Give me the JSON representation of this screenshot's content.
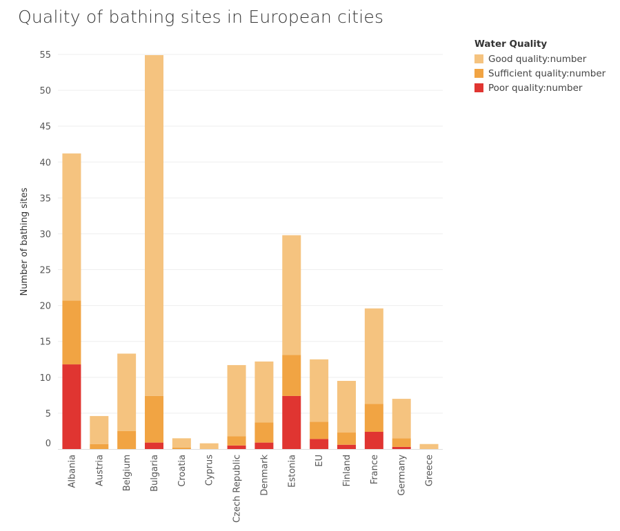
{
  "chart_data": {
    "type": "bar",
    "stacked": true,
    "title": "Quality of bathing sites in European cities",
    "ylabel": "Number of bathing sites",
    "xlabel": "",
    "ylim": [
      0,
      55
    ],
    "yticks": [
      0,
      5,
      10,
      15,
      20,
      25,
      30,
      35,
      40,
      45,
      50,
      55
    ],
    "grid": "horizontal",
    "legend_title": "Water Quality",
    "legend_position": "top-right",
    "categories": [
      "Albania",
      "Austria",
      "Belgium",
      "Bulgaria",
      "Croatia",
      "Cyprus",
      "Czech Republic",
      "Denmark",
      "Estonia",
      "EU",
      "Finland",
      "France",
      "Germany",
      "Greece"
    ],
    "series": [
      {
        "name": "Good quality:number",
        "color": "#f5c37f",
        "values": [
          20.5,
          3.9,
          10.8,
          47.5,
          1.3,
          0.8,
          9.9,
          8.5,
          16.7,
          8.7,
          7.2,
          13.3,
          5.5,
          0.7
        ]
      },
      {
        "name": "Sufficient quality:number",
        "color": "#f1a443",
        "values": [
          8.9,
          0.7,
          2.5,
          6.5,
          0.2,
          0,
          1.3,
          2.8,
          5.7,
          2.4,
          1.7,
          3.9,
          1.2,
          0
        ]
      },
      {
        "name": "Poor quality:number",
        "color": "#e03531",
        "values": [
          11.8,
          0,
          0,
          0.9,
          0,
          0,
          0.5,
          0.9,
          7.4,
          1.4,
          0.6,
          2.4,
          0.3,
          0
        ]
      }
    ]
  }
}
